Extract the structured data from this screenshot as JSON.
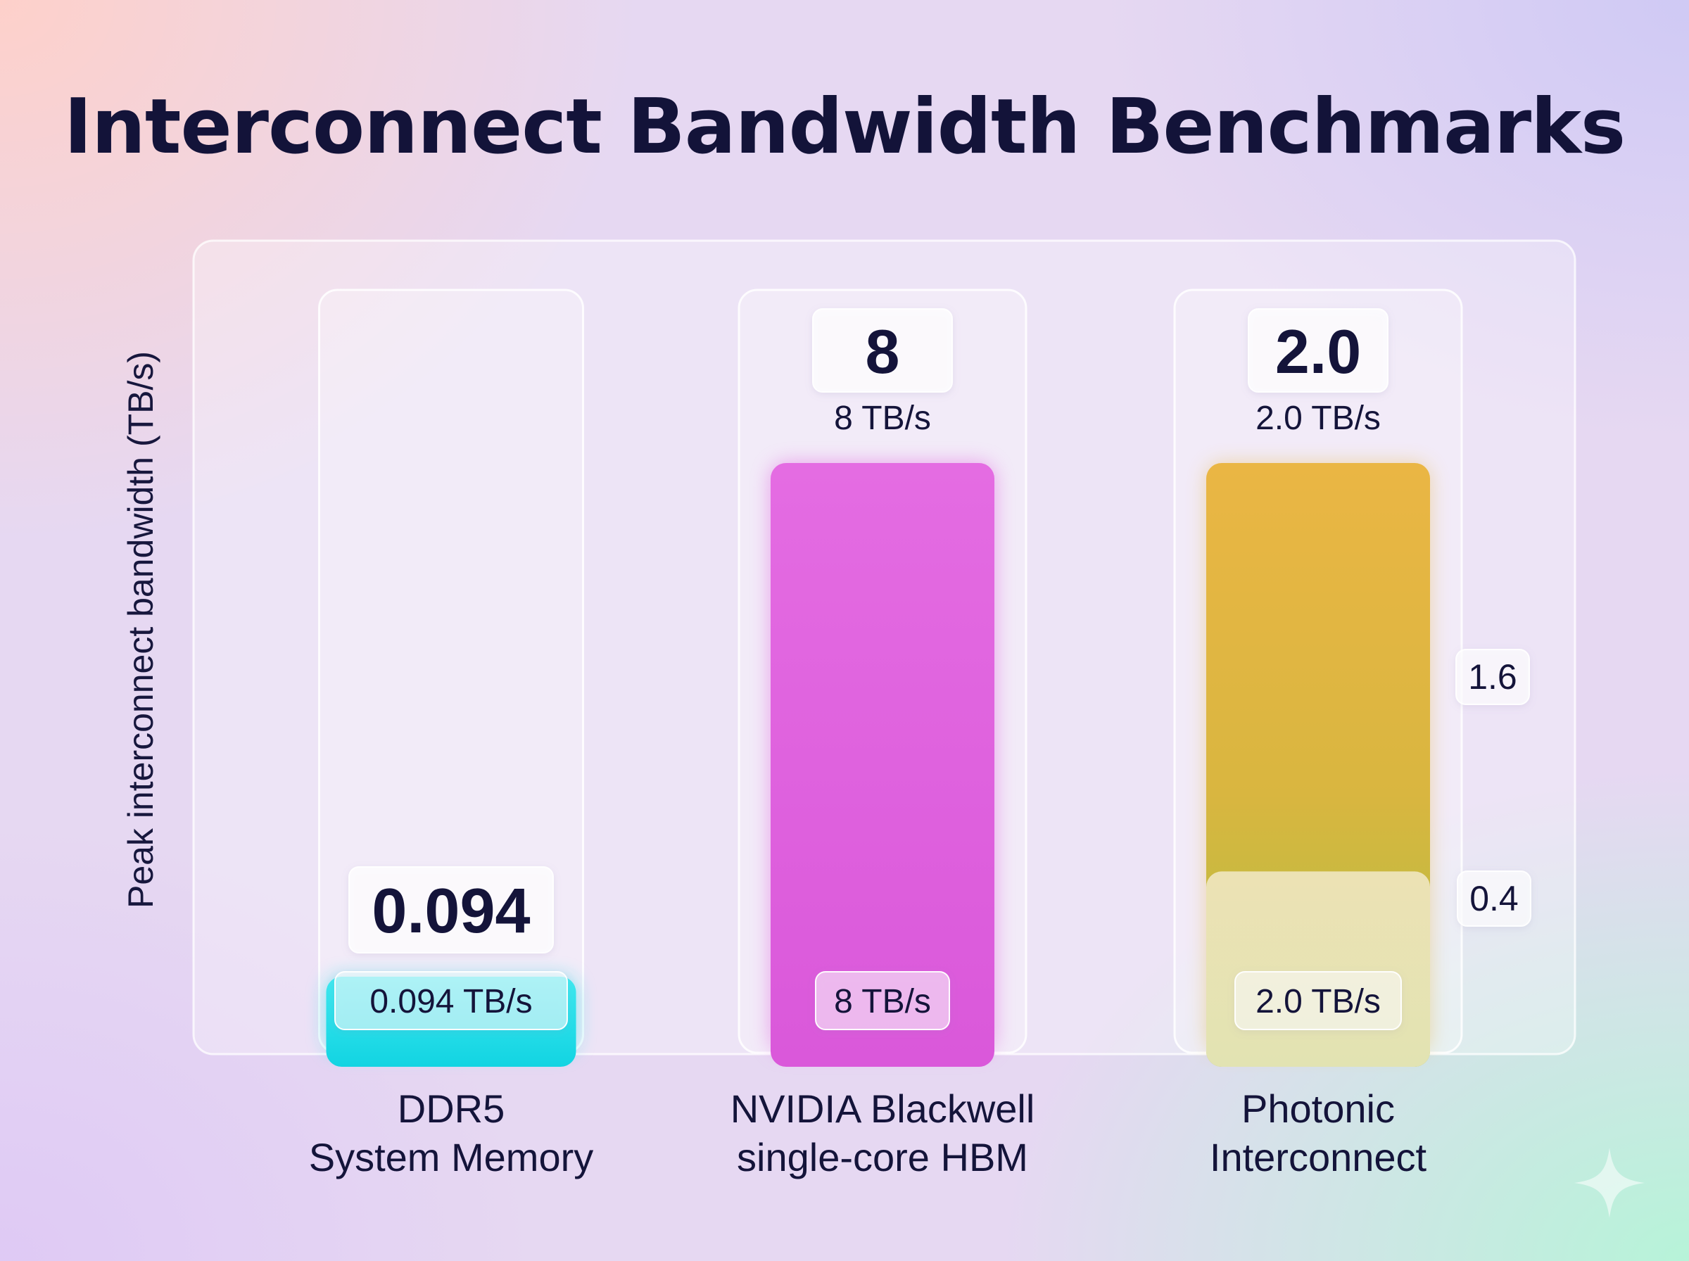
{
  "title": "Interconnect Bandwidth Benchmarks",
  "chart_data": {
    "type": "bar",
    "title": "Interconnect Bandwidth Benchmarks",
    "ylabel": "Peak interconnect bandwidth (TB/s)",
    "xlabel": "",
    "categories": [
      [
        "DDR5",
        "System Memory"
      ],
      [
        "NVIDIA Blackwell",
        "single-core HBM"
      ],
      [
        "Photonic",
        "Interconnect"
      ]
    ],
    "values": [
      0.094,
      8,
      2.0
    ],
    "value_badges": [
      "0.094",
      "8",
      "2.0"
    ],
    "top_labels": [
      "",
      "8 TB/s",
      "2.0 TB/s"
    ],
    "base_labels": [
      "0.094 TB/s",
      "8 TB/s",
      "2.0 TB/s"
    ],
    "bar_colors": [
      "#22dde6",
      "#e060de",
      "#e9b944"
    ],
    "segments": [
      {
        "category_index": 2,
        "values": [
          0.4,
          1.6
        ],
        "labels": [
          "0.4",
          "1.6"
        ],
        "colors": [
          "#ece6b8",
          "#e6b846"
        ]
      }
    ],
    "grid": false,
    "legend": "none"
  }
}
